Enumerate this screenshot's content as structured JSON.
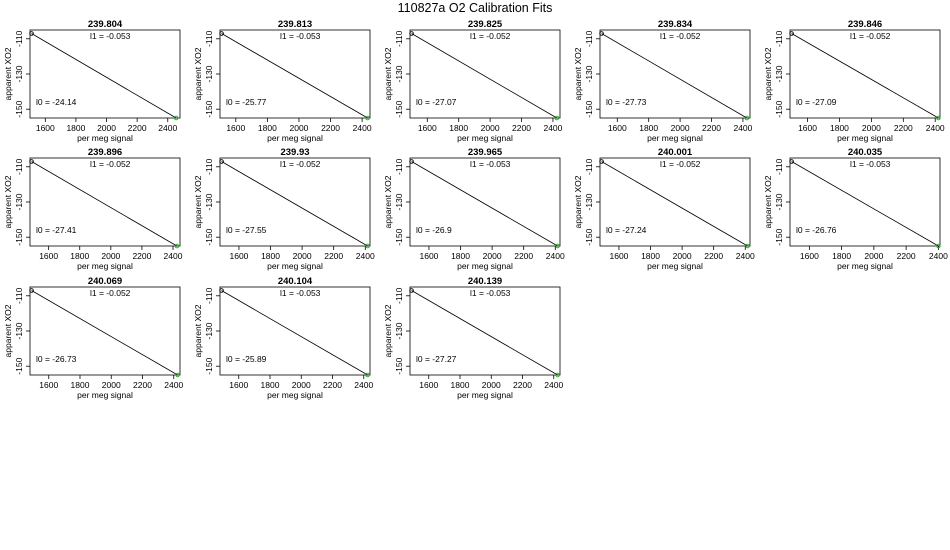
{
  "figure": {
    "title": "110827a   O2 Calibration Fits"
  },
  "chart_data": {
    "type": "scatter",
    "xlabel": "per meg signal",
    "ylabel": "apparent XO2",
    "ylim": [
      -155,
      -105
    ],
    "yticks": [
      -110,
      -130,
      -150
    ],
    "l1_label": "l1 =",
    "l0_label": "l0 =",
    "fit_color": "#000000",
    "point_color": "#22aa22",
    "panels": [
      {
        "title": "239.804",
        "l1": "-0.053",
        "l0": "-24.14",
        "xlim": [
          1500,
          2480
        ],
        "xticks": [
          1600,
          1800,
          2000,
          2200,
          2400
        ],
        "points": [
          [
            1510,
            -107
          ],
          [
            2455,
            -155
          ]
        ]
      },
      {
        "title": "239.813",
        "l1": "-0.053",
        "l0": "-25.77",
        "xlim": [
          1500,
          2450
        ],
        "xticks": [
          1600,
          1800,
          2000,
          2200,
          2400
        ],
        "points": [
          [
            1510,
            -107
          ],
          [
            2435,
            -155
          ]
        ]
      },
      {
        "title": "239.825",
        "l1": "-0.052",
        "l0": "-27.07",
        "xlim": [
          1490,
          2445
        ],
        "xticks": [
          1600,
          1800,
          2000,
          2200,
          2400
        ],
        "points": [
          [
            1500,
            -107
          ],
          [
            2425,
            -155
          ]
        ]
      },
      {
        "title": "239.834",
        "l1": "-0.052",
        "l0": "-27.73",
        "xlim": [
          1490,
          2445
        ],
        "xticks": [
          1600,
          1800,
          2000,
          2200,
          2400
        ],
        "points": [
          [
            1500,
            -107
          ],
          [
            2425,
            -155
          ]
        ]
      },
      {
        "title": "239.846",
        "l1": "-0.052",
        "l0": "-27.09",
        "xlim": [
          1490,
          2430
        ],
        "xticks": [
          1600,
          1800,
          2000,
          2200,
          2400
        ],
        "points": [
          [
            1500,
            -107
          ],
          [
            2420,
            -155
          ]
        ]
      },
      {
        "title": "239.896",
        "l1": "-0.052",
        "l0": "-27.41",
        "xlim": [
          1480,
          2445
        ],
        "xticks": [
          1600,
          1800,
          2000,
          2200,
          2400
        ],
        "points": [
          [
            1490,
            -107
          ],
          [
            2425,
            -155
          ]
        ]
      },
      {
        "title": "239.93",
        "l1": "-0.052",
        "l0": "-27.55",
        "xlim": [
          1480,
          2430
        ],
        "xticks": [
          1600,
          1800,
          2000,
          2200,
          2400
        ],
        "points": [
          [
            1490,
            -107
          ],
          [
            2415,
            -155
          ]
        ]
      },
      {
        "title": "239.965",
        "l1": "-0.053",
        "l0": "-26.9",
        "xlim": [
          1480,
          2430
        ],
        "xticks": [
          1600,
          1800,
          2000,
          2200,
          2400
        ],
        "points": [
          [
            1490,
            -107
          ],
          [
            2415,
            -155
          ]
        ]
      },
      {
        "title": "240.001",
        "l1": "-0.052",
        "l0": "-27.24",
        "xlim": [
          1480,
          2430
        ],
        "xticks": [
          1600,
          1800,
          2000,
          2200,
          2400
        ],
        "points": [
          [
            1490,
            -107
          ],
          [
            2415,
            -155
          ]
        ]
      },
      {
        "title": "240.035",
        "l1": "-0.053",
        "l0": "-26.76",
        "xlim": [
          1480,
          2410
        ],
        "xticks": [
          1600,
          1800,
          2000,
          2200,
          2400
        ],
        "points": [
          [
            1490,
            -107
          ],
          [
            2400,
            -155
          ]
        ]
      },
      {
        "title": "240.069",
        "l1": "-0.052",
        "l0": "-26.73",
        "xlim": [
          1480,
          2440
        ],
        "xticks": [
          1600,
          1800,
          2000,
          2200,
          2400
        ],
        "points": [
          [
            1490,
            -107
          ],
          [
            2425,
            -155
          ]
        ]
      },
      {
        "title": "240.104",
        "l1": "-0.053",
        "l0": "-25.89",
        "xlim": [
          1480,
          2440
        ],
        "xticks": [
          1600,
          1800,
          2000,
          2200,
          2400
        ],
        "points": [
          [
            1490,
            -107
          ],
          [
            2425,
            -155
          ]
        ]
      },
      {
        "title": "240.139",
        "l1": "-0.053",
        "l0": "-27.27",
        "xlim": [
          1480,
          2440
        ],
        "xticks": [
          1600,
          1800,
          2000,
          2200,
          2400
        ],
        "points": [
          [
            1490,
            -107
          ],
          [
            2425,
            -155
          ]
        ]
      }
    ]
  }
}
